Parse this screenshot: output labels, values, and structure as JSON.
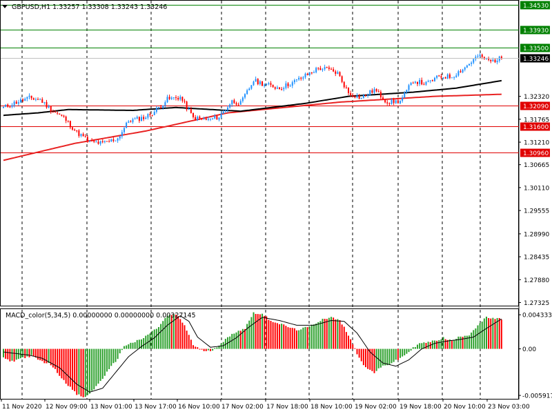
{
  "header": {
    "title": "GBPUSD,H1  1.33257 1.33308 1.33243 1.33246",
    "macd_title": "MACD_color(5,34,5) 0.00000000 0.00000000 0.00327145"
  },
  "colors": {
    "bull": "#1e90ff",
    "bear": "#ff0000",
    "ma_slow": "#e82222",
    "ma_fast": "#000000",
    "level_green": "#008000",
    "level_red": "#e00000",
    "macd_up": "#2ca02c",
    "macd_down": "#ff0000",
    "grid": "#000000"
  },
  "chart_data": [
    {
      "type": "candlestick",
      "title": "GBPUSD,H1",
      "ylim": [
        1.2725,
        1.3462
      ],
      "y_ticks": [
        "1.32320",
        "1.31765",
        "1.31210",
        "1.30665",
        "1.30110",
        "1.29555",
        "1.28990",
        "1.28435",
        "1.27880",
        "1.27325"
      ],
      "x_ticks": [
        "11 Nov 2020",
        "12 Nov 09:00",
        "13 Nov 01:00",
        "13 Nov 17:00",
        "16 Nov 10:00",
        "17 Nov 02:00",
        "17 Nov 18:00",
        "18 Nov 10:00",
        "19 Nov 02:00",
        "19 Nov 18:00",
        "20 Nov 10:00",
        "23 Nov 03:00"
      ],
      "horizontal_levels": [
        {
          "value": 1.3453,
          "label": "1.34530",
          "color": "green"
        },
        {
          "value": 1.3393,
          "label": "1.33930",
          "color": "green"
        },
        {
          "value": 1.335,
          "label": "1.33500",
          "color": "green"
        },
        {
          "value": 1.3209,
          "label": "1.32090",
          "color": "red"
        },
        {
          "value": 1.316,
          "label": "1.31600",
          "color": "red"
        },
        {
          "value": 1.3096,
          "label": "1.30960",
          "color": "red"
        }
      ],
      "current_price": {
        "value": 1.33246,
        "label": "1.33246"
      },
      "close_path": [
        [
          0,
          1.3205
        ],
        [
          6,
          1.3218
        ],
        [
          12,
          1.3228
        ],
        [
          17,
          1.3224
        ],
        [
          22,
          1.32
        ],
        [
          28,
          1.318
        ],
        [
          34,
          1.3145
        ],
        [
          40,
          1.3122
        ],
        [
          46,
          1.3118
        ],
        [
          53,
          1.313
        ],
        [
          58,
          1.3172
        ],
        [
          66,
          1.3182
        ],
        [
          70,
          1.3195
        ],
        [
          76,
          1.3225
        ],
        [
          82,
          1.323
        ],
        [
          88,
          1.318
        ],
        [
          95,
          1.3175
        ],
        [
          100,
          1.3182
        ],
        [
          106,
          1.322
        ],
        [
          110,
          1.3215
        ],
        [
          116,
          1.327
        ],
        [
          122,
          1.326
        ],
        [
          128,
          1.3252
        ],
        [
          134,
          1.3265
        ],
        [
          140,
          1.3282
        ],
        [
          146,
          1.33
        ],
        [
          150,
          1.3298
        ],
        [
          155,
          1.3288
        ],
        [
          160,
          1.324
        ],
        [
          166,
          1.3228
        ],
        [
          172,
          1.3248
        ],
        [
          178,
          1.3218
        ],
        [
          184,
          1.322
        ],
        [
          190,
          1.327
        ],
        [
          196,
          1.3262
        ],
        [
          202,
          1.328
        ],
        [
          208,
          1.328
        ],
        [
          214,
          1.3302
        ],
        [
          220,
          1.333
        ],
        [
          226,
          1.3317
        ],
        [
          231,
          1.3324
        ]
      ],
      "ma_slow": [
        [
          0,
          1.3077
        ],
        [
          33,
          1.3118
        ],
        [
          66,
          1.3148
        ],
        [
          104,
          1.3192
        ],
        [
          156,
          1.3218
        ],
        [
          200,
          1.3232
        ],
        [
          231,
          1.3237
        ]
      ],
      "ma_fast": [
        [
          0,
          1.3186
        ],
        [
          16,
          1.3192
        ],
        [
          30,
          1.32
        ],
        [
          60,
          1.3198
        ],
        [
          80,
          1.3205
        ],
        [
          110,
          1.3196
        ],
        [
          140,
          1.3215
        ],
        [
          160,
          1.3232
        ],
        [
          190,
          1.3242
        ],
        [
          210,
          1.3252
        ],
        [
          231,
          1.327
        ]
      ]
    },
    {
      "type": "bar",
      "title": "MACD_color(5,34,5)",
      "ylim": [
        -0.00635,
        0.00505
      ],
      "y_ticks": [
        "0.0043338",
        "0.00",
        "-0.005917"
      ],
      "histogram_path": [
        [
          0,
          -0.0012
        ],
        [
          4,
          -0.0016
        ],
        [
          8,
          -0.0012
        ],
        [
          13,
          -0.0009
        ],
        [
          17,
          -0.0015
        ],
        [
          22,
          -0.002
        ],
        [
          28,
          -0.004
        ],
        [
          34,
          -0.0058
        ],
        [
          38,
          -0.0062
        ],
        [
          43,
          -0.0048
        ],
        [
          48,
          -0.003
        ],
        [
          53,
          -0.0012
        ],
        [
          56,
          0.0004
        ],
        [
          60,
          0.0008
        ],
        [
          64,
          0.0012
        ],
        [
          68,
          0.002
        ],
        [
          72,
          0.0028
        ],
        [
          76,
          0.0042
        ],
        [
          80,
          0.0044
        ],
        [
          84,
          0.003
        ],
        [
          88,
          0.0005
        ],
        [
          92,
          -0.0002
        ],
        [
          96,
          -0.0003
        ],
        [
          100,
          0.0005
        ],
        [
          104,
          0.0014
        ],
        [
          108,
          0.0022
        ],
        [
          112,
          0.0026
        ],
        [
          116,
          0.0046
        ],
        [
          120,
          0.0044
        ],
        [
          124,
          0.0036
        ],
        [
          130,
          0.003
        ],
        [
          136,
          0.0024
        ],
        [
          142,
          0.0028
        ],
        [
          148,
          0.0038
        ],
        [
          152,
          0.004
        ],
        [
          156,
          0.0036
        ],
        [
          160,
          0.0018
        ],
        [
          164,
          -0.0006
        ],
        [
          168,
          -0.0024
        ],
        [
          172,
          -0.003
        ],
        [
          176,
          -0.0022
        ],
        [
          180,
          -0.0018
        ],
        [
          184,
          -0.0012
        ],
        [
          188,
          -0.0004
        ],
        [
          192,
          0.0006
        ],
        [
          196,
          0.0008
        ],
        [
          200,
          0.001
        ],
        [
          204,
          0.0014
        ],
        [
          208,
          0.001
        ],
        [
          212,
          0.0016
        ],
        [
          216,
          0.0018
        ],
        [
          220,
          0.003
        ],
        [
          224,
          0.004
        ],
        [
          228,
          0.0038
        ],
        [
          231,
          0.0038
        ]
      ],
      "signal_path": [
        [
          0,
          -0.0004
        ],
        [
          6,
          -0.0006
        ],
        [
          12,
          -0.0008
        ],
        [
          18,
          -0.0012
        ],
        [
          26,
          -0.0024
        ],
        [
          34,
          -0.0045
        ],
        [
          40,
          -0.0055
        ],
        [
          46,
          -0.005
        ],
        [
          52,
          -0.003
        ],
        [
          58,
          -0.001
        ],
        [
          64,
          0.0003
        ],
        [
          70,
          0.0014
        ],
        [
          76,
          0.003
        ],
        [
          82,
          0.0042
        ],
        [
          86,
          0.0035
        ],
        [
          90,
          0.0015
        ],
        [
          96,
          0.0002
        ],
        [
          102,
          0.0004
        ],
        [
          108,
          0.0014
        ],
        [
          114,
          0.0028
        ],
        [
          120,
          0.004
        ],
        [
          128,
          0.0036
        ],
        [
          136,
          0.003
        ],
        [
          144,
          0.003
        ],
        [
          152,
          0.0036
        ],
        [
          158,
          0.0035
        ],
        [
          164,
          0.002
        ],
        [
          170,
          -0.0004
        ],
        [
          176,
          -0.0018
        ],
        [
          182,
          -0.0022
        ],
        [
          188,
          -0.0014
        ],
        [
          194,
          0.0
        ],
        [
          200,
          0.0007
        ],
        [
          206,
          0.001
        ],
        [
          212,
          0.0012
        ],
        [
          218,
          0.0015
        ],
        [
          224,
          0.0026
        ],
        [
          231,
          0.0038
        ]
      ]
    }
  ]
}
